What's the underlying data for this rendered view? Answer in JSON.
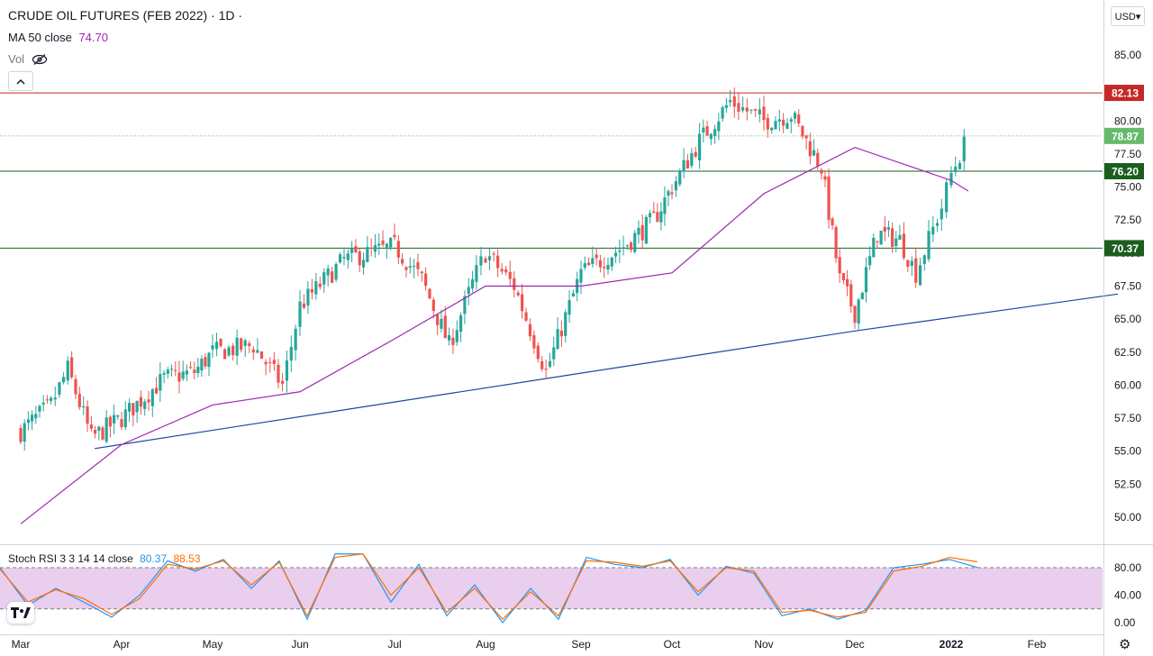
{
  "header": {
    "title": "CRUDE OIL FUTURES (FEB 2022) · 1D ·",
    "ma_label": "MA 50 close",
    "ma_value": "74.70",
    "vol_label": "Vol",
    "collapse_icon": "chevron-up-icon",
    "currency": "USD▾"
  },
  "rsi": {
    "label": "Stoch RSI 3 3 14 14 close",
    "k_value": "80.37",
    "d_value": "88.53"
  },
  "colors": {
    "up": "#26a69a",
    "down": "#ef5350",
    "ma": "#9c27b0",
    "trendline": "#1848a0",
    "resistance": "#c62828",
    "support": "#1b5e20",
    "rsi_k": "#2196f3",
    "rsi_d": "#ff6d00",
    "rsi_band": "#e1bee7",
    "last_price": "#66bb6a"
  },
  "chart_data": [
    {
      "type": "candlestick",
      "title": "CRUDE OIL FUTURES (FEB 2022)",
      "y_ticks": [
        50.0,
        52.5,
        55.0,
        57.5,
        60.0,
        62.5,
        65.0,
        67.5,
        70.0,
        72.5,
        75.0,
        77.5,
        80.0,
        85.0
      ],
      "ylim": [
        48.0,
        87.0
      ],
      "x_ticks": [
        "Mar",
        "Apr",
        "May",
        "Jun",
        "Jul",
        "Aug",
        "Sep",
        "Oct",
        "Nov",
        "Dec",
        "2022",
        "Feb"
      ],
      "price_labels": [
        {
          "value": "82.13",
          "kind": "resistance"
        },
        {
          "value": "78.87",
          "kind": "last"
        },
        {
          "value": "76.20",
          "kind": "support"
        },
        {
          "value": "70.37",
          "kind": "support"
        }
      ],
      "horizontal_lines": [
        82.13,
        76.2,
        70.37
      ],
      "last_price": 78.87,
      "trendline": [
        {
          "x": "Mar 23",
          "y": 55.2
        },
        {
          "x": "Aug 20",
          "y": 60.5
        },
        {
          "x": "Dec 1",
          "y": 64.1
        },
        {
          "x": "Feb 28",
          "y": 66.9
        }
      ],
      "ohlc_close": [
        {
          "date": "Mar",
          "close": 56.5
        },
        {
          "date": "Mar 10",
          "close": 58.5
        },
        {
          "date": "Mar 15",
          "close": 61.2
        },
        {
          "date": "Mar 22",
          "close": 56.0
        },
        {
          "date": "Apr",
          "close": 57.5
        },
        {
          "date": "Apr 15",
          "close": 60.5
        },
        {
          "date": "Apr 25",
          "close": 61.0
        },
        {
          "date": "May",
          "close": 62.5
        },
        {
          "date": "May 15",
          "close": 63.0
        },
        {
          "date": "May 25",
          "close": 60.0
        },
        {
          "date": "Jun",
          "close": 66.0
        },
        {
          "date": "Jun 15",
          "close": 69.5
        },
        {
          "date": "Jul",
          "close": 70.5
        },
        {
          "date": "Jul 10",
          "close": 68.0
        },
        {
          "date": "Jul 19",
          "close": 63.0
        },
        {
          "date": "Jul 28",
          "close": 68.5
        },
        {
          "date": "Aug",
          "close": 70.0
        },
        {
          "date": "Aug 10",
          "close": 67.5
        },
        {
          "date": "Aug 20",
          "close": 61.0
        },
        {
          "date": "Sep",
          "close": 68.5
        },
        {
          "date": "Sep 15",
          "close": 70.5
        },
        {
          "date": "Sep 25",
          "close": 72.5
        },
        {
          "date": "Oct",
          "close": 75.0
        },
        {
          "date": "Oct 10",
          "close": 78.5
        },
        {
          "date": "Oct 20",
          "close": 81.5
        },
        {
          "date": "Nov",
          "close": 80.0
        },
        {
          "date": "Nov 10",
          "close": 80.5
        },
        {
          "date": "Nov 20",
          "close": 76.5
        },
        {
          "date": "Nov 26",
          "close": 68.0
        },
        {
          "date": "Dec 1",
          "close": 65.5
        },
        {
          "date": "Dec 8",
          "close": 71.5
        },
        {
          "date": "Dec 15",
          "close": 71.0
        },
        {
          "date": "Dec 20",
          "close": 68.5
        },
        {
          "date": "Dec 28",
          "close": 73.5
        },
        {
          "date": "2022",
          "close": 76.0
        },
        {
          "date": "Jan 7",
          "close": 78.87
        }
      ],
      "ma_50": [
        {
          "date": "Mar",
          "value": 49.5
        },
        {
          "date": "Apr",
          "value": 55.5
        },
        {
          "date": "May",
          "value": 58.5
        },
        {
          "date": "Jun",
          "value": 59.5
        },
        {
          "date": "Jul",
          "value": 63.5
        },
        {
          "date": "Aug",
          "value": 67.5
        },
        {
          "date": "Sep",
          "value": 67.5
        },
        {
          "date": "Oct",
          "value": 68.5
        },
        {
          "date": "Nov",
          "value": 74.5
        },
        {
          "date": "Dec",
          "value": 78.0
        },
        {
          "date": "2022",
          "value": 75.5
        },
        {
          "date": "Jan 7",
          "value": 74.7
        }
      ]
    },
    {
      "type": "line",
      "title": "Stoch RSI 3 3 14 14 close",
      "y_ticks": [
        0.0,
        40.0,
        80.0
      ],
      "ylim": [
        -5,
        100
      ],
      "bands": [
        20,
        80
      ],
      "series": [
        {
          "name": "K",
          "values": [
            80,
            25,
            50,
            30,
            8,
            40,
            90,
            75,
            92,
            50,
            90,
            5,
            100,
            100,
            30,
            85,
            10,
            55,
            0,
            50,
            5,
            95,
            85,
            80,
            92,
            40,
            82,
            72,
            10,
            20,
            5,
            18,
            80,
            85,
            92,
            80.37
          ]
        },
        {
          "name": "D",
          "values": [
            78,
            30,
            48,
            35,
            12,
            35,
            85,
            78,
            90,
            55,
            88,
            10,
            95,
            100,
            40,
            80,
            15,
            50,
            5,
            45,
            10,
            90,
            88,
            82,
            90,
            45,
            80,
            75,
            15,
            18,
            8,
            15,
            75,
            82,
            95,
            88.53
          ]
        }
      ]
    }
  ]
}
